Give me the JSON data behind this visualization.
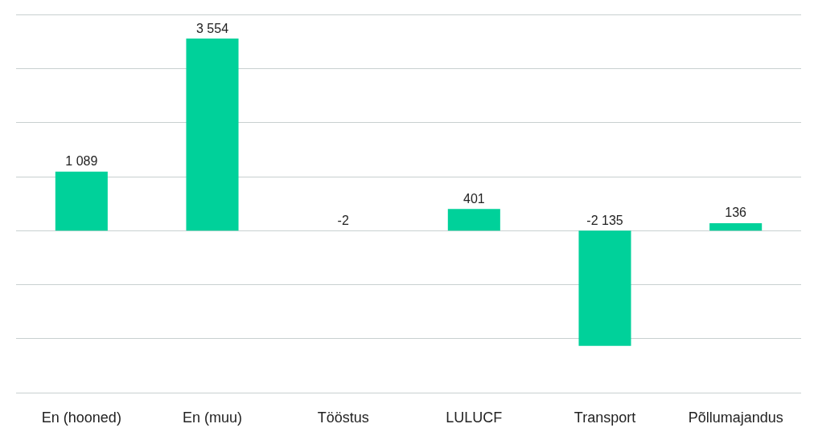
{
  "chart_data": {
    "type": "bar",
    "categories": [
      "En (hooned)",
      "En (muu)",
      "Tööstus",
      "LULUCF",
      "Transport",
      "Põllumajandus"
    ],
    "values": [
      1089,
      3554,
      -2,
      401,
      -2135,
      136
    ],
    "value_labels": [
      "1 089",
      "3 554",
      "-2",
      "401",
      "-2 135",
      "136"
    ],
    "color": "#00d19a",
    "grid": "y"
  }
}
